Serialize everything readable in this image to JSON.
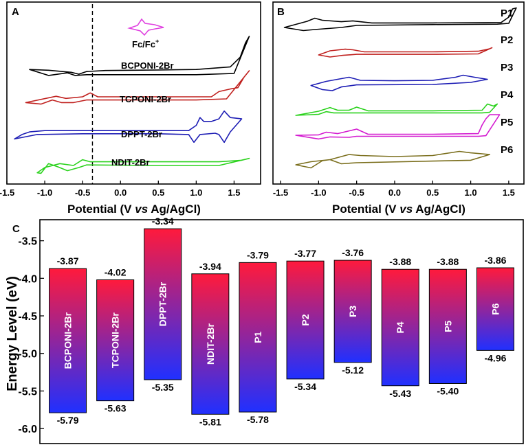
{
  "chart_data": [
    {
      "panel": "A",
      "type": "line",
      "title": "",
      "xlabel_parts": [
        "Potential (V ",
        "vs",
        " Ag/AgCl)"
      ],
      "xticks": [
        "-1.5",
        "-1.0",
        "-0.5",
        "0.0",
        "0.5",
        "1.0",
        "1.5"
      ],
      "xlim": [
        -1.5,
        1.85
      ],
      "dashed_line_x": -0.37,
      "inset_label": "Fc/Fc",
      "inset_label_sup": "+",
      "inset_color": "#e040e0",
      "series": [
        {
          "name": "BCPONI-2Br",
          "color": "#000000",
          "range": [
            -1.2,
            1.7
          ],
          "top": [
            [
              -1.2,
              -0.82
            ],
            [
              -0.95,
              -0.85
            ],
            [
              -0.65,
              -0.93
            ],
            [
              -0.55,
              -1.0
            ],
            [
              -0.45,
              -0.9
            ],
            [
              -0.2,
              -0.86
            ],
            [
              0.5,
              -0.84
            ],
            [
              1.0,
              -0.82
            ],
            [
              1.45,
              -0.72
            ],
            [
              1.58,
              -0.35
            ],
            [
              1.65,
              0.2
            ],
            [
              1.7,
              0.45
            ]
          ],
          "bottom": [
            [
              -1.2,
              -0.82
            ],
            [
              -0.95,
              -1.05
            ],
            [
              -0.7,
              -0.95
            ],
            [
              -0.6,
              -1.05
            ],
            [
              -0.45,
              -1.02
            ],
            [
              0.5,
              -1.02
            ],
            [
              1.0,
              -1.02
            ],
            [
              1.5,
              -0.97
            ],
            [
              1.7,
              0.45
            ]
          ]
        },
        {
          "name": "TCPONI-2Br",
          "color": "#c0201e",
          "range": [
            -1.25,
            1.7
          ],
          "top": [
            [
              -1.25,
              -0.72
            ],
            [
              -0.85,
              -0.48
            ],
            [
              -0.72,
              -0.56
            ],
            [
              -0.5,
              -0.5
            ],
            [
              -0.4,
              -0.35
            ],
            [
              -0.3,
              -0.5
            ],
            [
              0.5,
              -0.5
            ],
            [
              1.2,
              -0.5
            ],
            [
              1.3,
              -0.3
            ],
            [
              1.45,
              -0.2
            ],
            [
              1.55,
              -0.15
            ],
            [
              1.63,
              0.25
            ],
            [
              1.7,
              0.5
            ]
          ],
          "bottom": [
            [
              -1.25,
              -0.72
            ],
            [
              -1.05,
              -0.78
            ],
            [
              -0.9,
              -0.62
            ],
            [
              -0.78,
              -0.72
            ],
            [
              -0.62,
              -0.72
            ],
            [
              -0.45,
              -0.62
            ],
            [
              0.0,
              -0.62
            ],
            [
              1.0,
              -0.62
            ],
            [
              1.4,
              -0.58
            ],
            [
              1.7,
              0.5
            ]
          ]
        },
        {
          "name": "DPPT-2Br",
          "color": "#1c1cb4",
          "range": [
            -1.4,
            1.6
          ],
          "top": [
            [
              -1.4,
              -0.72
            ],
            [
              -1.3,
              -0.55
            ],
            [
              -1.2,
              -0.45
            ],
            [
              -1.0,
              -0.4
            ],
            [
              0.0,
              -0.4
            ],
            [
              0.9,
              -0.4
            ],
            [
              1.0,
              -0.2
            ],
            [
              1.05,
              0.1
            ],
            [
              1.1,
              -0.05
            ],
            [
              1.2,
              -0.05
            ],
            [
              1.3,
              0.05
            ],
            [
              1.37,
              0.35
            ],
            [
              1.45,
              0.1
            ],
            [
              1.6,
              0.05
            ]
          ],
          "bottom": [
            [
              -1.4,
              -0.72
            ],
            [
              -1.1,
              -0.55
            ],
            [
              -0.5,
              -0.52
            ],
            [
              0.5,
              -0.52
            ],
            [
              0.9,
              -0.55
            ],
            [
              0.97,
              -0.85
            ],
            [
              1.05,
              -0.55
            ],
            [
              1.25,
              -0.5
            ],
            [
              1.3,
              -0.55
            ],
            [
              1.37,
              -0.85
            ],
            [
              1.45,
              -0.45
            ],
            [
              1.6,
              0.05
            ]
          ]
        },
        {
          "name": "NDIT-2Br",
          "color": "#2ad21c",
          "range": [
            -1.1,
            1.7
          ],
          "top": [
            [
              -1.1,
              -0.7
            ],
            [
              -1.0,
              -0.5
            ],
            [
              -0.8,
              -0.35
            ],
            [
              -0.62,
              -0.42
            ],
            [
              -0.5,
              -0.2
            ],
            [
              -0.4,
              -0.28
            ],
            [
              0.5,
              -0.28
            ],
            [
              1.3,
              -0.28
            ],
            [
              1.6,
              -0.22
            ],
            [
              1.7,
              -0.15
            ]
          ],
          "bottom": [
            [
              -1.1,
              -0.7
            ],
            [
              -1.05,
              -0.72
            ],
            [
              -0.95,
              -0.35
            ],
            [
              -0.82,
              -0.48
            ],
            [
              -0.7,
              -0.62
            ],
            [
              -0.55,
              -0.5
            ],
            [
              -0.45,
              -0.4
            ],
            [
              0.5,
              -0.42
            ],
            [
              1.3,
              -0.42
            ],
            [
              1.7,
              -0.15
            ]
          ]
        }
      ]
    },
    {
      "panel": "B",
      "type": "line",
      "title": "",
      "xlabel_parts": [
        "Potential (V ",
        "vs",
        " Ag/AgCl)"
      ],
      "xticks": [
        "-1.5",
        "-1.0",
        "-0.5",
        "0.0",
        "0.5",
        "1.0",
        "1.5"
      ],
      "xlim": [
        -1.6,
        1.7
      ],
      "series": [
        {
          "name": "P1",
          "color": "#000000",
          "range": [
            -1.45,
            1.6
          ],
          "top": [
            [
              -1.45,
              -0.6
            ],
            [
              -1.3,
              -0.45
            ],
            [
              -1.15,
              -0.3
            ],
            [
              -1.05,
              -0.15
            ],
            [
              -0.95,
              -0.25
            ],
            [
              -0.7,
              -0.32
            ],
            [
              -0.55,
              -0.28
            ],
            [
              -0.3,
              -0.38
            ],
            [
              0.5,
              -0.38
            ],
            [
              1.4,
              -0.36
            ],
            [
              1.5,
              -0.1
            ],
            [
              1.55,
              0.3
            ],
            [
              1.6,
              0.35
            ]
          ],
          "bottom": [
            [
              -1.45,
              -0.6
            ],
            [
              -1.2,
              -0.75
            ],
            [
              -1.05,
              -0.7
            ],
            [
              -0.7,
              -0.6
            ],
            [
              -0.5,
              -0.5
            ],
            [
              0.5,
              -0.46
            ],
            [
              1.35,
              -0.44
            ],
            [
              1.5,
              -0.4
            ],
            [
              1.6,
              0.35
            ]
          ]
        },
        {
          "name": "P2",
          "color": "#c0201e",
          "range": [
            -1.0,
            1.28
          ],
          "top": [
            [
              -1.0,
              -0.5
            ],
            [
              -0.85,
              -0.3
            ],
            [
              -0.65,
              -0.22
            ],
            [
              -0.55,
              -0.25
            ],
            [
              -0.4,
              -0.35
            ],
            [
              0.5,
              -0.35
            ],
            [
              1.1,
              -0.32
            ],
            [
              1.25,
              -0.2
            ],
            [
              1.28,
              -0.15
            ]
          ],
          "bottom": [
            [
              -1.0,
              -0.5
            ],
            [
              -0.85,
              -0.6
            ],
            [
              -0.68,
              -0.52
            ],
            [
              -0.5,
              -0.47
            ],
            [
              0.5,
              -0.47
            ],
            [
              1.1,
              -0.45
            ],
            [
              1.28,
              -0.15
            ]
          ]
        },
        {
          "name": "P3",
          "color": "#1c1cb4",
          "range": [
            -1.1,
            1.22
          ],
          "top": [
            [
              -1.1,
              -0.35
            ],
            [
              -0.9,
              -0.15
            ],
            [
              -0.75,
              -0.05
            ],
            [
              -0.6,
              0.05
            ],
            [
              -0.45,
              -0.1
            ],
            [
              0.0,
              -0.12
            ],
            [
              0.5,
              -0.1
            ],
            [
              0.8,
              0.05
            ],
            [
              0.9,
              0.15
            ],
            [
              1.05,
              0.05
            ],
            [
              1.22,
              -0.05
            ]
          ],
          "bottom": [
            [
              -1.1,
              -0.35
            ],
            [
              -0.95,
              -0.55
            ],
            [
              -0.82,
              -0.6
            ],
            [
              -0.7,
              -0.42
            ],
            [
              -0.5,
              -0.32
            ],
            [
              0.5,
              -0.3
            ],
            [
              1.0,
              -0.2
            ],
            [
              1.22,
              -0.05
            ]
          ]
        },
        {
          "name": "P4",
          "color": "#2ad21c",
          "range": [
            -1.3,
            1.35
          ],
          "top": [
            [
              -1.3,
              -0.5
            ],
            [
              -1.0,
              -0.3
            ],
            [
              -0.85,
              -0.12
            ],
            [
              -0.75,
              -0.25
            ],
            [
              -0.6,
              -0.25
            ],
            [
              -0.5,
              -0.1
            ],
            [
              -0.35,
              -0.28
            ],
            [
              0.5,
              -0.28
            ],
            [
              1.15,
              -0.25
            ],
            [
              1.22,
              0.05
            ],
            [
              1.3,
              -0.05
            ],
            [
              1.35,
              0.05
            ]
          ],
          "bottom": [
            [
              -1.3,
              -0.5
            ],
            [
              -1.0,
              -0.45
            ],
            [
              -0.9,
              -0.32
            ],
            [
              -0.8,
              -0.38
            ],
            [
              -0.6,
              -0.38
            ],
            [
              0.5,
              -0.38
            ],
            [
              1.15,
              -0.38
            ],
            [
              1.25,
              -0.35
            ],
            [
              1.35,
              0.05
            ]
          ]
        },
        {
          "name": "P5",
          "color": "#d41ad0",
          "range": [
            -1.3,
            1.38
          ],
          "top": [
            [
              -1.3,
              -0.4
            ],
            [
              -1.0,
              -0.38
            ],
            [
              -0.9,
              -0.25
            ],
            [
              -0.75,
              -0.32
            ],
            [
              -0.5,
              -0.1
            ],
            [
              -0.35,
              -0.35
            ],
            [
              0.5,
              -0.35
            ],
            [
              1.1,
              -0.32
            ],
            [
              1.15,
              0.1
            ],
            [
              1.2,
              0.4
            ],
            [
              1.25,
              0.6
            ],
            [
              1.38,
              0.6
            ]
          ],
          "bottom": [
            [
              -1.3,
              -0.4
            ],
            [
              -1.0,
              -0.58
            ],
            [
              -0.85,
              -0.48
            ],
            [
              -0.6,
              -0.5
            ],
            [
              -0.5,
              -0.45
            ],
            [
              0.5,
              -0.45
            ],
            [
              1.1,
              -0.45
            ],
            [
              1.2,
              -0.42
            ],
            [
              1.38,
              0.6
            ]
          ]
        },
        {
          "name": "P6",
          "color": "#7a6e1c",
          "range": [
            -1.3,
            1.25
          ],
          "top": [
            [
              -1.3,
              -0.6
            ],
            [
              -1.1,
              -0.45
            ],
            [
              -0.85,
              -0.35
            ],
            [
              -0.6,
              -0.1
            ],
            [
              -0.45,
              -0.15
            ],
            [
              0.0,
              -0.2
            ],
            [
              0.5,
              -0.15
            ],
            [
              0.85,
              0.05
            ],
            [
              1.0,
              -0.02
            ],
            [
              1.25,
              -0.1
            ]
          ],
          "bottom": [
            [
              -1.3,
              -0.6
            ],
            [
              -1.1,
              -0.75
            ],
            [
              -0.95,
              -0.4
            ],
            [
              -0.85,
              -0.35
            ],
            [
              -0.7,
              -0.55
            ],
            [
              -0.5,
              -0.5
            ],
            [
              0.5,
              -0.42
            ],
            [
              1.0,
              -0.38
            ],
            [
              1.25,
              -0.1
            ]
          ]
        }
      ]
    },
    {
      "panel": "C",
      "type": "bar",
      "title": "",
      "ylabel": "Energy Level (eV)",
      "yticks": [
        "-3.5",
        "-4.0",
        "-4.5",
        "-5.0",
        "-5.5",
        "-6.0"
      ],
      "ylim": [
        -6.2,
        -3.22
      ],
      "gradient_colors": [
        "#ff1a3c",
        "#2030ff"
      ],
      "categories": [
        "BCPONI-2Br",
        "TCPONI-2Br",
        "DPPT-2Br",
        "NDIT-2Br",
        "P1",
        "P2",
        "P3",
        "P4",
        "P5",
        "P6"
      ],
      "lumo": [
        -3.87,
        -4.02,
        -3.34,
        -3.94,
        -3.79,
        -3.77,
        -3.76,
        -3.88,
        -3.88,
        -3.86
      ],
      "homo": [
        -5.79,
        -5.63,
        -5.35,
        -5.81,
        -5.78,
        -5.34,
        -5.12,
        -5.43,
        -5.4,
        -4.96
      ],
      "lumo_labels": [
        "-3.87",
        "-4.02",
        "-3.34",
        "-3.94",
        "-3.79",
        "-3.77",
        "-3.76",
        "-3.88",
        "-3.88",
        "-3.86"
      ],
      "homo_labels": [
        "-5.79",
        "-5.63",
        "-5.35",
        "-5.81",
        "-5.78",
        "-5.34",
        "-5.12",
        "-5.43",
        "-5.40",
        "-4.96"
      ]
    }
  ]
}
